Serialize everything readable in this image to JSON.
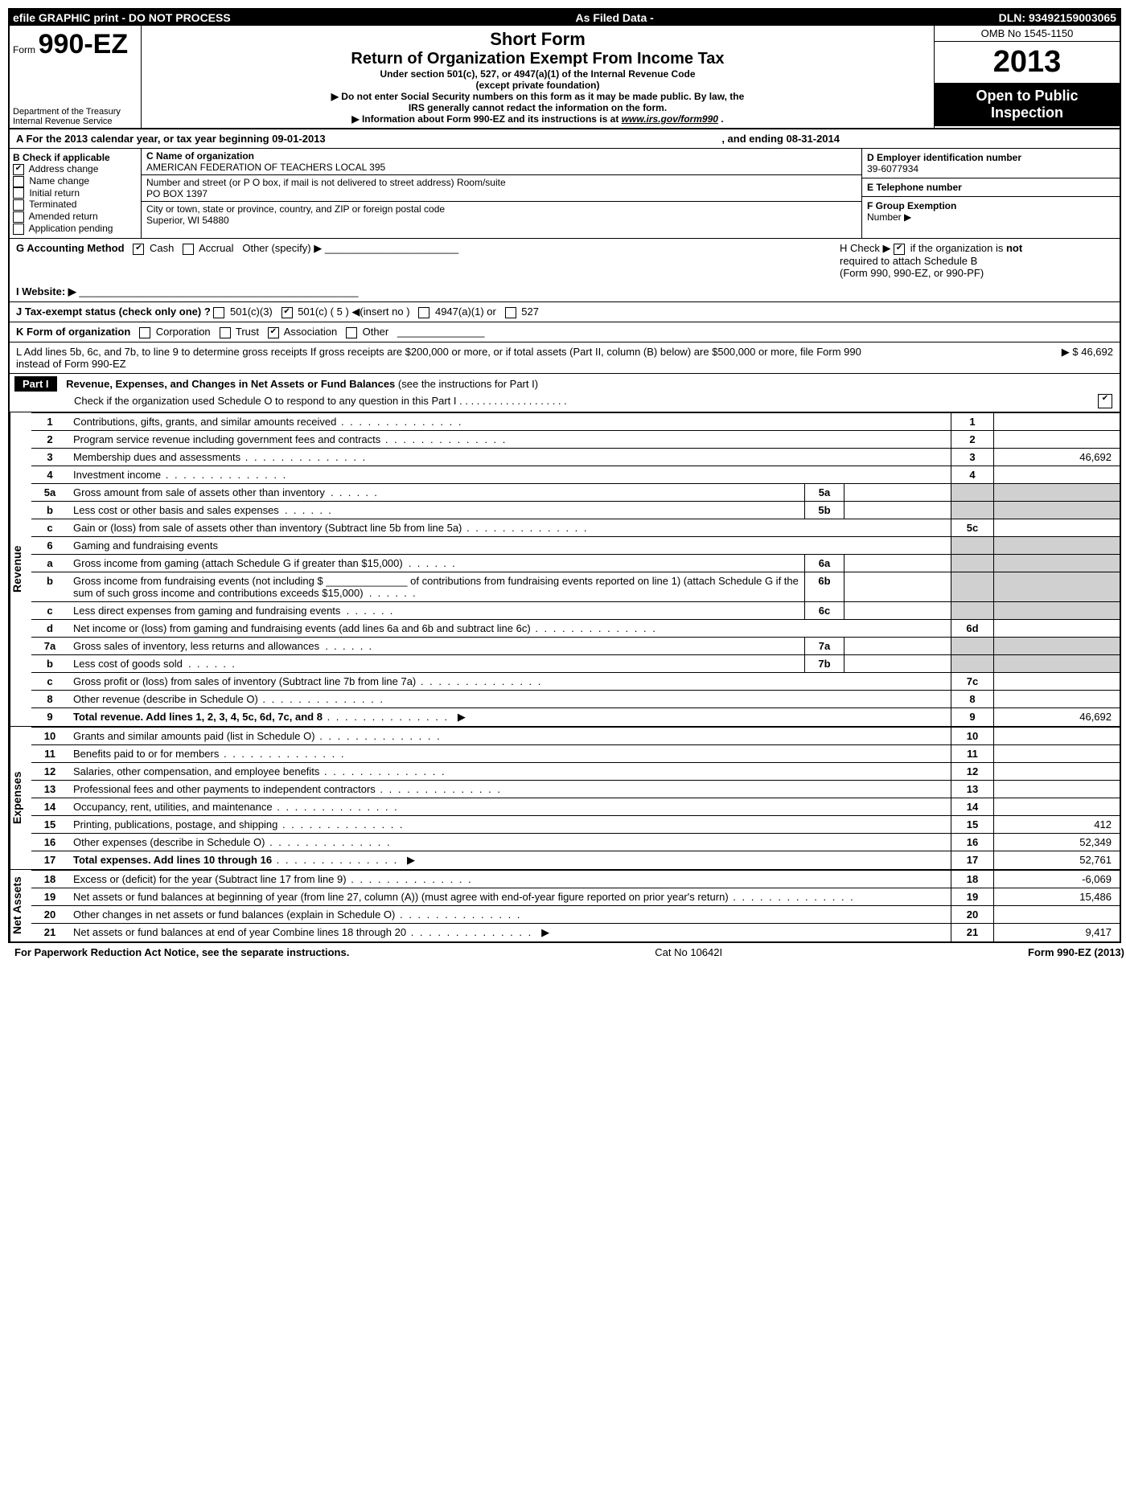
{
  "topbar": {
    "left": "efile GRAPHIC print - DO NOT PROCESS",
    "mid": "As Filed Data -",
    "right": "DLN: 93492159003065"
  },
  "header": {
    "form_prefix": "Form",
    "form_number": "990-EZ",
    "short_form": "Short Form",
    "return_title": "Return of Organization Exempt From Income Tax",
    "subtitle1": "Under section 501(c), 527, or 4947(a)(1) of the Internal Revenue Code",
    "subtitle2": "(except private foundation)",
    "warn1": "▶ Do not enter Social Security numbers on this form as it may be made public. By law, the",
    "warn2": "IRS generally cannot redact the information on the form.",
    "info_pre": "▶  Information about Form 990-EZ and its instructions is at ",
    "info_link": "www.irs.gov/form990",
    "info_post": ".",
    "omb": "OMB No 1545-1150",
    "year": "2013",
    "open1": "Open to Public",
    "open2": "Inspection",
    "dept1": "Department of the Treasury",
    "dept2": "Internal Revenue Service"
  },
  "A": {
    "label": "A  For the 2013 calendar year, or tax year beginning 09-01-2013",
    "ending": ", and ending 08-31-2014"
  },
  "B": {
    "title": "B  Check if applicable",
    "items": [
      "Address change",
      "Name change",
      "Initial return",
      "Terminated",
      "Amended return",
      "Application pending"
    ],
    "checked": [
      true,
      false,
      false,
      false,
      false,
      false
    ]
  },
  "C": {
    "title": "C Name of organization",
    "name": "AMERICAN FEDERATION OF TEACHERS LOCAL 395",
    "street_label": "Number and street (or P O box, if mail is not delivered to street address) Room/suite",
    "street": "PO BOX 1397",
    "city_label": "City or town, state or province, country, and ZIP or foreign postal code",
    "city": "Superior, WI  54880"
  },
  "D": {
    "label": "D Employer identification number",
    "value": "39-6077934"
  },
  "E": {
    "label": "E Telephone number",
    "value": ""
  },
  "F": {
    "label": "F Group Exemption",
    "label2": "Number    ▶",
    "value": ""
  },
  "G": {
    "label": "G Accounting Method",
    "cash": "Cash",
    "accrual": "Accrual",
    "other": "Other (specify) ▶",
    "cash_checked": true
  },
  "H": {
    "label_pre": "H  Check ▶",
    "label_post": "if the organization is ",
    "not": "not",
    "line2": "required to attach Schedule B",
    "line3": "(Form 990, 990-EZ, or 990-PF)",
    "checked": true
  },
  "I": {
    "label": "I Website: ▶"
  },
  "J": {
    "label": "J Tax-exempt status (check only one) ?",
    "opts": [
      "501(c)(3)",
      "501(c) ( 5 ) ◀(insert no )",
      "4947(a)(1) or",
      "527"
    ],
    "checked_index": 1
  },
  "K": {
    "label": "K Form of organization",
    "opts": [
      "Corporation",
      "Trust",
      "Association",
      "Other"
    ],
    "checked_index": 2
  },
  "L": {
    "text": "L Add lines 5b, 6c, and 7b, to line 9 to determine gross receipts  If gross receipts are $200,000 or more, or if total assets (Part II, column (B) below) are $500,000 or more, file Form 990 instead of Form 990-EZ",
    "amount_prefix": "▶ $",
    "amount": "46,692"
  },
  "part1": {
    "tag": "Part I",
    "title": "Revenue, Expenses, and Changes in Net Assets or Fund Balances",
    "hint": "(see the instructions for Part I)",
    "sched_o": "Check if the organization used Schedule O to respond to any question in this Part I   .  .  .  .  .  .  .  .  .  .  .  .  .  .  .  .  .  .  .",
    "sched_o_checked": true
  },
  "sections": {
    "revenue": "Revenue",
    "expenses": "Expenses",
    "netassets": "Net Assets"
  },
  "lines": {
    "l1": {
      "n": "1",
      "t": "Contributions, gifts, grants, and similar amounts received",
      "box": "1",
      "amt": ""
    },
    "l2": {
      "n": "2",
      "t": "Program service revenue including government fees and contracts",
      "box": "2",
      "amt": ""
    },
    "l3": {
      "n": "3",
      "t": "Membership dues and assessments",
      "box": "3",
      "amt": "46,692"
    },
    "l4": {
      "n": "4",
      "t": "Investment income",
      "box": "4",
      "amt": ""
    },
    "l5a": {
      "n": "5a",
      "t": "Gross amount from sale of assets other than inventory",
      "ibox": "5a"
    },
    "l5b": {
      "n": "b",
      "t": "Less  cost or other basis and sales expenses",
      "ibox": "5b"
    },
    "l5c": {
      "n": "c",
      "t": "Gain or (loss) from sale of assets other than inventory (Subtract line 5b from line 5a)",
      "box": "5c",
      "amt": ""
    },
    "l6": {
      "n": "6",
      "t": "Gaming and fundraising events"
    },
    "l6a": {
      "n": "a",
      "t": "Gross income from gaming (attach Schedule G if greater than $15,000)",
      "ibox": "6a"
    },
    "l6b": {
      "n": "b",
      "t": "Gross income from fundraising events (not including $ ______________ of contributions from fundraising events reported on line 1) (attach Schedule G if the sum of such gross income and contributions exceeds $15,000)",
      "ibox": "6b"
    },
    "l6c": {
      "n": "c",
      "t": "Less  direct expenses from gaming and fundraising events",
      "ibox": "6c"
    },
    "l6d": {
      "n": "d",
      "t": "Net income or (loss) from gaming and fundraising events (add lines 6a and 6b and subtract line 6c)",
      "box": "6d",
      "amt": ""
    },
    "l7a": {
      "n": "7a",
      "t": "Gross sales of inventory, less returns and allowances",
      "ibox": "7a"
    },
    "l7b": {
      "n": "b",
      "t": "Less  cost of goods sold",
      "ibox": "7b"
    },
    "l7c": {
      "n": "c",
      "t": "Gross profit or (loss) from sales of inventory (Subtract line 7b from line 7a)",
      "box": "7c",
      "amt": ""
    },
    "l8": {
      "n": "8",
      "t": "Other revenue (describe in Schedule O)",
      "box": "8",
      "amt": ""
    },
    "l9": {
      "n": "9",
      "t": "Total revenue. Add lines 1, 2, 3, 4, 5c, 6d, 7c, and 8",
      "box": "9",
      "amt": "46,692",
      "bold": true,
      "arrow": true
    },
    "l10": {
      "n": "10",
      "t": "Grants and similar amounts paid (list in Schedule O)",
      "box": "10",
      "amt": ""
    },
    "l11": {
      "n": "11",
      "t": "Benefits paid to or for members",
      "box": "11",
      "amt": ""
    },
    "l12": {
      "n": "12",
      "t": "Salaries, other compensation, and employee benefits",
      "box": "12",
      "amt": ""
    },
    "l13": {
      "n": "13",
      "t": "Professional fees and other payments to independent contractors",
      "box": "13",
      "amt": ""
    },
    "l14": {
      "n": "14",
      "t": "Occupancy, rent, utilities, and maintenance",
      "box": "14",
      "amt": ""
    },
    "l15": {
      "n": "15",
      "t": "Printing, publications, postage, and shipping",
      "box": "15",
      "amt": "412"
    },
    "l16": {
      "n": "16",
      "t": "Other expenses (describe in Schedule O)",
      "box": "16",
      "amt": "52,349"
    },
    "l17": {
      "n": "17",
      "t": "Total expenses. Add lines 10 through 16",
      "box": "17",
      "amt": "52,761",
      "bold": true,
      "arrow": true
    },
    "l18": {
      "n": "18",
      "t": "Excess or (deficit) for the year (Subtract line 17 from line 9)",
      "box": "18",
      "amt": "-6,069"
    },
    "l19": {
      "n": "19",
      "t": "Net assets or fund balances at beginning of year (from line 27, column (A)) (must agree with end-of-year figure reported on prior year's return)",
      "box": "19",
      "amt": "15,486"
    },
    "l20": {
      "n": "20",
      "t": "Other changes in net assets or fund balances (explain in Schedule O)",
      "box": "20",
      "amt": ""
    },
    "l21": {
      "n": "21",
      "t": "Net assets or fund balances at end of year  Combine lines 18 through 20",
      "box": "21",
      "amt": "9,417",
      "arrow": true
    }
  },
  "footer": {
    "left": "For Paperwork Reduction Act Notice, see the separate instructions.",
    "mid": "Cat No 10642I",
    "right": "Form 990-EZ (2013)"
  }
}
